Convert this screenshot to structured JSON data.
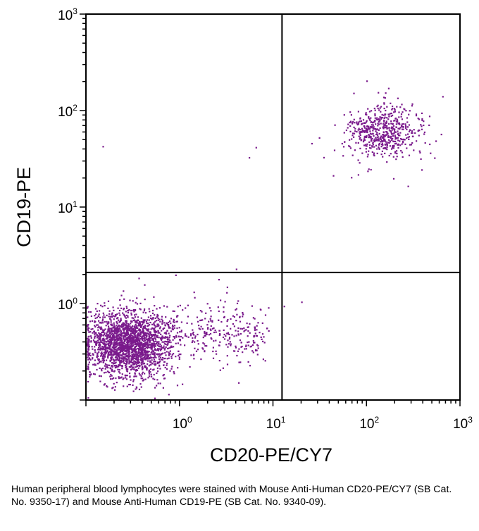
{
  "chart_data": {
    "type": "scatter",
    "title": "",
    "xlabel": "CD20-PE/CY7",
    "ylabel": "CD19-PE",
    "xscale": "log",
    "yscale": "log",
    "xlim": [
      0.1,
      1000
    ],
    "ylim": [
      0.1,
      1000
    ],
    "x_ticks": [
      {
        "base": "10",
        "exp": "0",
        "value": 1
      },
      {
        "base": "10",
        "exp": "1",
        "value": 10
      },
      {
        "base": "10",
        "exp": "2",
        "value": 100
      },
      {
        "base": "10",
        "exp": "3",
        "value": 1000
      }
    ],
    "y_ticks": [
      {
        "base": "10",
        "exp": "0",
        "value": 1
      },
      {
        "base": "10",
        "exp": "1",
        "value": 10
      },
      {
        "base": "10",
        "exp": "2",
        "value": 100
      },
      {
        "base": "10",
        "exp": "3",
        "value": 1000
      }
    ],
    "quadrant_gates": {
      "x": 12.5,
      "y": 2.1
    },
    "point_color": "#7a1a8c",
    "populations": [
      {
        "name": "CD19- CD20- (lower-left)",
        "count": 2100,
        "center_x": 0.28,
        "center_y": 0.38,
        "spread_log_x": 0.22,
        "spread_log_y": 0.17
      },
      {
        "name": "lower-left tail toward CD20+",
        "count": 360,
        "log_x_range": [
          -0.3,
          0.95
        ],
        "center_y": 0.5,
        "spread_log_y": 0.14
      },
      {
        "name": "CD19+ CD20+ (upper-right)",
        "count": 560,
        "center_x": 150,
        "center_y": 60,
        "spread_log_x": 0.2,
        "spread_log_y": 0.13
      },
      {
        "name": "upper-right sparse outliers",
        "count": 35,
        "log_x_range": [
          1.4,
          2.8
        ],
        "log_y_range": [
          1.2,
          2.2
        ]
      }
    ],
    "outliers": [
      {
        "x": 0.15,
        "y": 43
      },
      {
        "x": 5.5,
        "y": 33
      },
      {
        "x": 6.5,
        "y": 42
      },
      {
        "x": 4,
        "y": 2.3
      },
      {
        "x": 0.9,
        "y": 2.0
      },
      {
        "x": 20,
        "y": 1.05
      },
      {
        "x": 13,
        "y": 0.95
      },
      {
        "x": 2.6,
        "y": 1.8
      },
      {
        "x": 3.2,
        "y": 1.5
      }
    ]
  },
  "caption": "Human peripheral blood lymphocytes were stained with Mouse Anti-Human CD20-PE/CY7 (SB Cat. No. 9350-17) and Mouse Anti-Human CD19-PE (SB Cat. No. 9340-09)."
}
